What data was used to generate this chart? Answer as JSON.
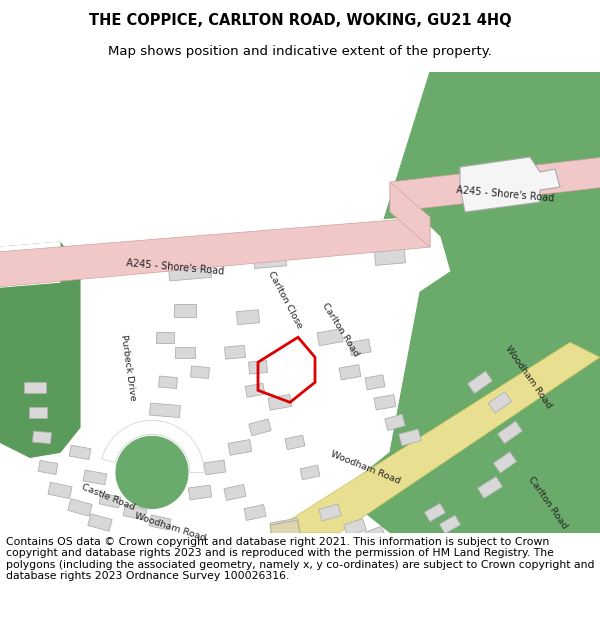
{
  "title_line1": "THE COPPICE, CARLTON ROAD, WOKING, GU21 4HQ",
  "title_line2": "Map shows position and indicative extent of the property.",
  "footer_text": "Contains OS data © Crown copyright and database right 2021. This information is subject to Crown copyright and database rights 2023 and is reproduced with the permission of HM Land Registry. The polygons (including the associated geometry, namely x, y co-ordinates) are subject to Crown copyright and database rights 2023 Ordnance Survey 100026316.",
  "green_color": "#6aaa6a",
  "road_pink_color": "#f0c8c8",
  "road_pink_edge": "#d4a0a0",
  "yellow_road_color": "#e8df90",
  "yellow_road_edge": "#c8c060",
  "building_color": "#d8d8d8",
  "building_edge": "#b0b0b0",
  "white_color": "#ffffff",
  "off_white": "#f0f0f0",
  "plot_color": "#dd0000",
  "green_patch_color": "#5a9a5a",
  "white_bld_color": "#f5f5f5"
}
